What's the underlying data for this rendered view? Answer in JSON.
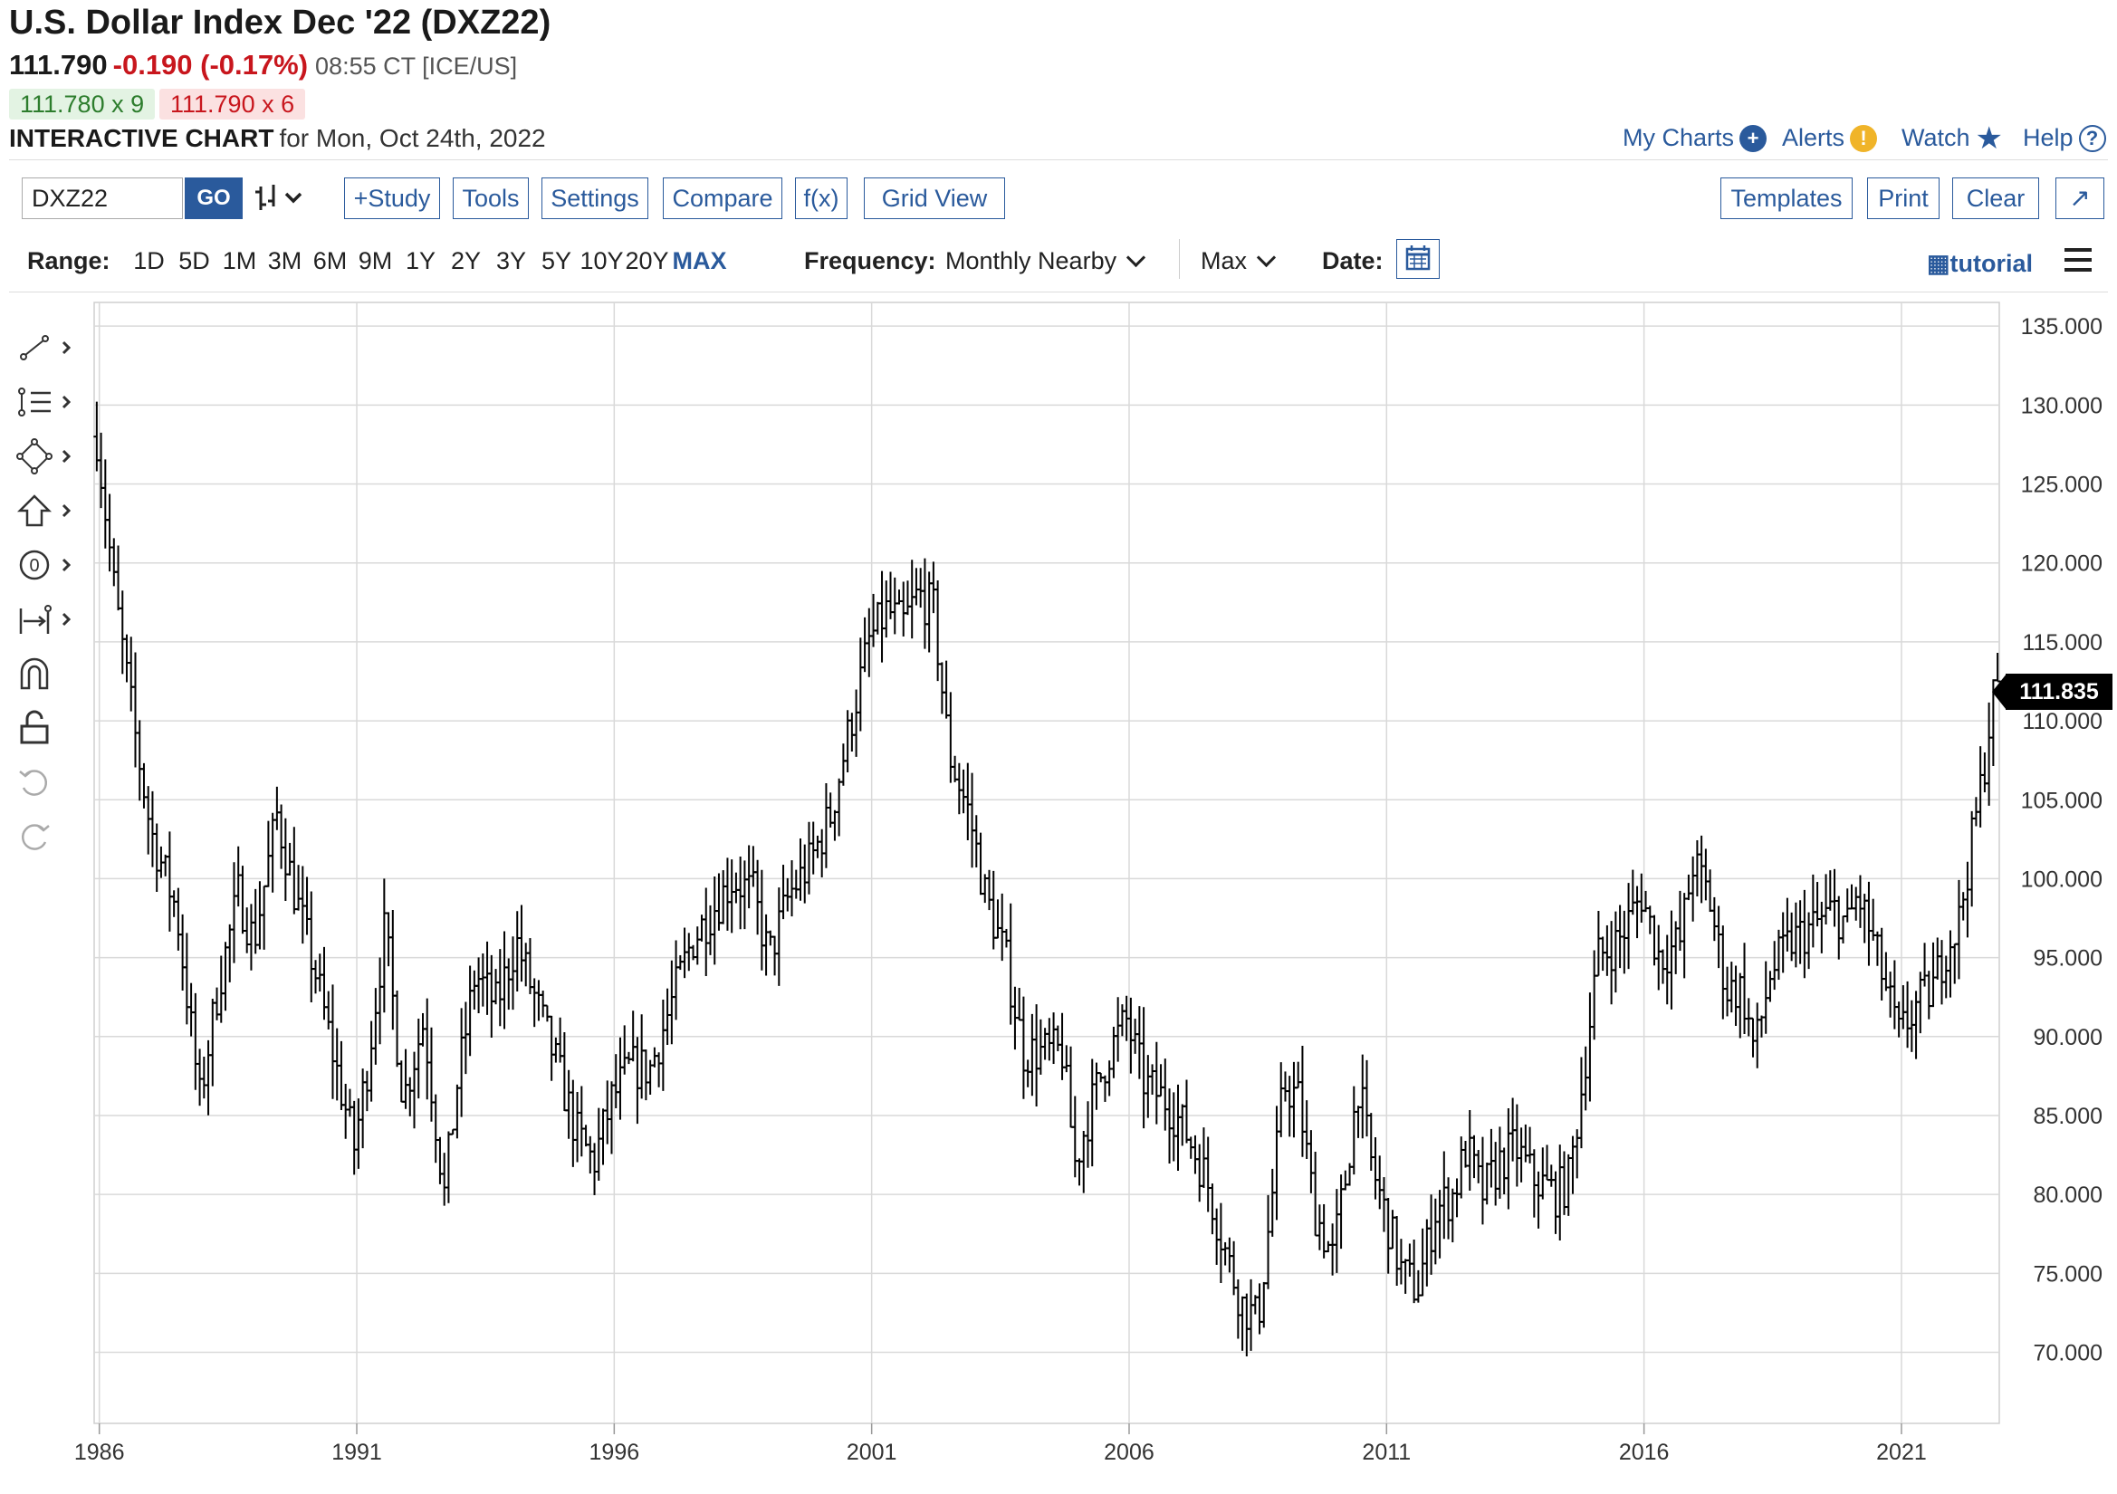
{
  "header": {
    "title": "U.S. Dollar Index Dec '22 (DXZ22)",
    "last": "111.790",
    "change": "-0.190 (-0.17%)",
    "time_exchange": "08:55 CT [ICE/US]",
    "bid": "111.780 x 9",
    "ask": "111.790 x 6",
    "interactive_label": "INTERACTIVE CHART",
    "interactive_date": "for Mon, Oct 24th, 2022"
  },
  "top_links": {
    "my_charts": "My Charts",
    "alerts": "Alerts",
    "watch": "Watch",
    "help": "Help"
  },
  "toolbar": {
    "symbol": "DXZ22",
    "go": "GO",
    "study": "+Study",
    "tools": "Tools",
    "settings": "Settings",
    "compare": "Compare",
    "fx": "f(x)",
    "grid_view": "Grid View",
    "templates": "Templates",
    "print": "Print",
    "clear": "Clear"
  },
  "range": {
    "label": "Range:",
    "options": [
      "1D",
      "5D",
      "1M",
      "3M",
      "6M",
      "9M",
      "1Y",
      "2Y",
      "3Y",
      "5Y",
      "10Y",
      "20Y",
      "MAX"
    ],
    "active": "MAX",
    "frequency_label": "Frequency:",
    "frequency_value": "Monthly Nearby",
    "aggregation": "Max",
    "date_label": "Date:",
    "tutorial": "tutorial"
  },
  "colors": {
    "accent": "#2a5a9c",
    "negative": "#c8161d",
    "bid_bg": "#e3f3e3",
    "ask_bg": "#fbe1e1",
    "bar": "#000000",
    "grid": "#d9d9d9"
  },
  "chart_data": {
    "type": "bar",
    "style": "OHLC monthly bars",
    "title": "U.S. Dollar Index Dec '22 (DXZ22)",
    "frequency": "Monthly Nearby",
    "y_ticks": [
      "135.000",
      "130.000",
      "125.000",
      "120.000",
      "115.000",
      "110.000",
      "105.000",
      "100.000",
      "95.000",
      "90.000",
      "85.000",
      "80.000",
      "75.000",
      "70.000"
    ],
    "x_ticks": [
      "1986",
      "1991",
      "1996",
      "2001",
      "2006",
      "2011",
      "2016",
      "2021"
    ],
    "ylim": [
      65.5,
      136.5
    ],
    "xlim": [
      1985.9,
      2022.9
    ],
    "last_price_label": "111.835",
    "last_price": 111.835,
    "grid": true,
    "anchors": [
      [
        1985.95,
        128
      ],
      [
        1986.3,
        118
      ],
      [
        1986.7,
        109
      ],
      [
        1987.0,
        103
      ],
      [
        1987.5,
        98
      ],
      [
        1987.95,
        86
      ],
      [
        1988.3,
        93
      ],
      [
        1988.7,
        99
      ],
      [
        1989.0,
        96
      ],
      [
        1989.45,
        104
      ],
      [
        1989.8,
        99
      ],
      [
        1990.2,
        94
      ],
      [
        1990.6,
        88
      ],
      [
        1990.95,
        83
      ],
      [
        1991.2,
        88
      ],
      [
        1991.55,
        97
      ],
      [
        1991.9,
        86
      ],
      [
        1992.3,
        91
      ],
      [
        1992.7,
        80
      ],
      [
        1992.95,
        87
      ],
      [
        1993.3,
        94
      ],
      [
        1993.7,
        92
      ],
      [
        1994.1,
        96
      ],
      [
        1994.5,
        92
      ],
      [
        1994.9,
        88
      ],
      [
        1995.25,
        84
      ],
      [
        1995.6,
        82
      ],
      [
        1995.95,
        86
      ],
      [
        1996.3,
        88
      ],
      [
        1996.7,
        88
      ],
      [
        1997.1,
        92
      ],
      [
        1997.5,
        96
      ],
      [
        1997.9,
        98
      ],
      [
        1998.3,
        100
      ],
      [
        1998.7,
        99
      ],
      [
        1999.0,
        95
      ],
      [
        1999.4,
        99
      ],
      [
        1999.8,
        101
      ],
      [
        2000.2,
        104
      ],
      [
        2000.6,
        110
      ],
      [
        2000.95,
        115
      ],
      [
        2001.3,
        117
      ],
      [
        2001.6,
        116
      ],
      [
        2001.9,
        118
      ],
      [
        2002.2,
        117
      ],
      [
        2002.5,
        108
      ],
      [
        2002.9,
        104
      ],
      [
        2003.2,
        99
      ],
      [
        2003.6,
        95
      ],
      [
        2003.95,
        89
      ],
      [
        2004.3,
        89
      ],
      [
        2004.7,
        89
      ],
      [
        2004.95,
        82
      ],
      [
        2005.3,
        86
      ],
      [
        2005.6,
        89
      ],
      [
        2005.95,
        91
      ],
      [
        2006.3,
        87
      ],
      [
        2006.7,
        86
      ],
      [
        2007.1,
        84
      ],
      [
        2007.5,
        81
      ],
      [
        2007.9,
        76
      ],
      [
        2008.2,
        73
      ],
      [
        2008.5,
        72
      ],
      [
        2008.75,
        79
      ],
      [
        2009.0,
        87
      ],
      [
        2009.3,
        86
      ],
      [
        2009.6,
        79
      ],
      [
        2009.95,
        76
      ],
      [
        2010.2,
        81
      ],
      [
        2010.45,
        87
      ],
      [
        2010.7,
        82
      ],
      [
        2010.95,
        79
      ],
      [
        2011.3,
        75
      ],
      [
        2011.6,
        74
      ],
      [
        2011.95,
        79
      ],
      [
        2012.3,
        80
      ],
      [
        2012.55,
        83
      ],
      [
        2012.85,
        80
      ],
      [
        2013.2,
        82
      ],
      [
        2013.5,
        83
      ],
      [
        2013.85,
        81
      ],
      [
        2014.3,
        80
      ],
      [
        2014.55,
        81
      ],
      [
        2014.8,
        87
      ],
      [
        2015.1,
        95
      ],
      [
        2015.5,
        96
      ],
      [
        2015.95,
        99
      ],
      [
        2016.3,
        95
      ],
      [
        2016.7,
        96
      ],
      [
        2016.95,
        101
      ],
      [
        2017.25,
        99
      ],
      [
        2017.6,
        93
      ],
      [
        2017.9,
        93
      ],
      [
        2018.15,
        89
      ],
      [
        2018.45,
        94
      ],
      [
        2018.85,
        96
      ],
      [
        2019.3,
        97
      ],
      [
        2019.7,
        98
      ],
      [
        2019.95,
        97
      ],
      [
        2020.15,
        99
      ],
      [
        2020.45,
        96
      ],
      [
        2020.7,
        93
      ],
      [
        2020.95,
        90
      ],
      [
        2021.3,
        92
      ],
      [
        2021.6,
        93
      ],
      [
        2021.9,
        96
      ],
      [
        2022.1,
        97
      ],
      [
        2022.4,
        103
      ],
      [
        2022.6,
        107
      ],
      [
        2022.75,
        111
      ],
      [
        2022.83,
        112
      ]
    ]
  }
}
